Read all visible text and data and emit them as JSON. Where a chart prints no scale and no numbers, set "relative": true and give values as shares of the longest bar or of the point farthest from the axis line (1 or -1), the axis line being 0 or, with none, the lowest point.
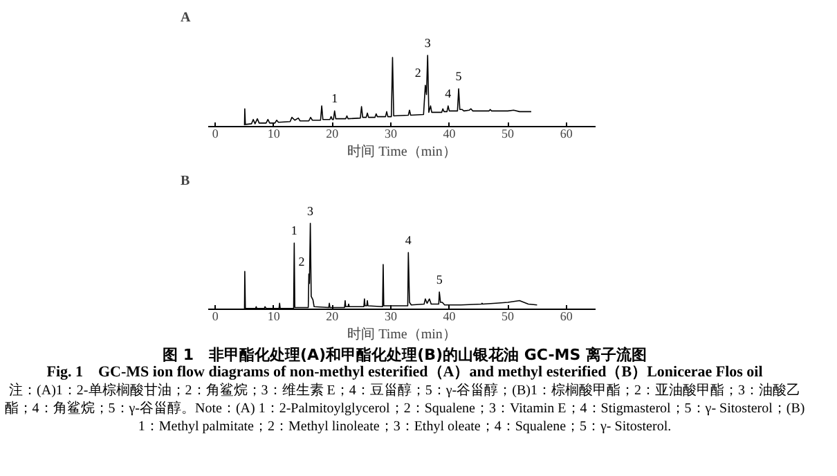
{
  "chart_data": [
    {
      "type": "line",
      "title": "A",
      "xlabel": "时间 Time（min）",
      "relative": true,
      "xlim": [
        -1.2,
        65
      ],
      "xticks": [
        0,
        10,
        20,
        30,
        40,
        50,
        60
      ],
      "grid": false,
      "marker": "none",
      "line_style": "solid",
      "series": [
        {
          "color": "#000000",
          "x": [
            5.0,
            5.05,
            5.15,
            6.2,
            6.5,
            6.8,
            7.2,
            7.5,
            8.7,
            9.0,
            9.3,
            10.2,
            10.5,
            10.8,
            12.8,
            13.1,
            13.6,
            14.2,
            14.5,
            16.0,
            16.3,
            16.6,
            18.0,
            18.2,
            18.4,
            19.6,
            19.8,
            20.0,
            20.2,
            20.4,
            20.6,
            22.3,
            22.5,
            22.7,
            24.8,
            25.0,
            25.2,
            25.8,
            26.0,
            26.2,
            27.3,
            27.5,
            27.7,
            29.1,
            29.3,
            29.5,
            30.1,
            30.3,
            30.5,
            33.0,
            33.2,
            33.4,
            35.6,
            35.9,
            36.1,
            36.3,
            36.5,
            36.8,
            37.0,
            38.7,
            38.9,
            39.1,
            39.6,
            39.8,
            40.0,
            41.4,
            41.6,
            41.8,
            42.2,
            42.5,
            43.4,
            43.7,
            44.0,
            46.8,
            47.0,
            47.2,
            48.5,
            50,
            51,
            52,
            54.0
          ],
          "values": [
            0.02,
            0.25,
            0.03,
            0.04,
            0.1,
            0.04,
            0.11,
            0.05,
            0.05,
            0.1,
            0.05,
            0.05,
            0.09,
            0.06,
            0.07,
            0.13,
            0.09,
            0.12,
            0.08,
            0.08,
            0.13,
            0.09,
            0.09,
            0.29,
            0.1,
            0.1,
            0.14,
            0.1,
            0.1,
            0.22,
            0.11,
            0.11,
            0.15,
            0.11,
            0.12,
            0.28,
            0.13,
            0.13,
            0.19,
            0.13,
            0.13,
            0.18,
            0.14,
            0.14,
            0.21,
            0.14,
            0.14,
            0.97,
            0.15,
            0.16,
            0.23,
            0.16,
            0.17,
            0.58,
            0.45,
            1.0,
            0.2,
            0.29,
            0.2,
            0.2,
            0.25,
            0.21,
            0.21,
            0.29,
            0.22,
            0.22,
            0.53,
            0.24,
            0.24,
            0.22,
            0.23,
            0.25,
            0.22,
            0.22,
            0.24,
            0.22,
            0.22,
            0.22,
            0.23,
            0.21,
            0.21
          ]
        }
      ],
      "annotations": [
        {
          "text": "1",
          "x": 20.4,
          "y": 0.22
        },
        {
          "text": "2",
          "x": 35.9,
          "y": 0.58
        },
        {
          "text": "3",
          "x": 36.3,
          "y": 1.0
        },
        {
          "text": "4",
          "x": 39.8,
          "y": 0.29
        },
        {
          "text": "5",
          "x": 41.6,
          "y": 0.53
        }
      ]
    },
    {
      "type": "line",
      "title": "B",
      "xlabel": "时间 Time（min）",
      "relative": true,
      "xlim": [
        -1.2,
        65
      ],
      "xticks": [
        0,
        10,
        20,
        30,
        40,
        50,
        60
      ],
      "grid": false,
      "marker": "none",
      "line_style": "solid",
      "series": [
        {
          "color": "#000000",
          "x": [
            5.0,
            5.05,
            5.15,
            6.9,
            7.0,
            7.1,
            8.4,
            8.5,
            8.7,
            10.9,
            11.0,
            11.1,
            13.4,
            13.5,
            13.6,
            15.9,
            16.0,
            16.1,
            16.25,
            16.4,
            16.7,
            16.9,
            19.4,
            19.5,
            19.6,
            22.1,
            22.2,
            22.3,
            22.7,
            22.8,
            22.9,
            25.4,
            25.5,
            25.6,
            25.9,
            26.0,
            26.1,
            28.6,
            28.7,
            28.8,
            30.5,
            32.9,
            33.0,
            33.2,
            33.5,
            35.7,
            35.9,
            36.2,
            36.6,
            36.9,
            38.2,
            38.3,
            38.5,
            38.8,
            39.2,
            42,
            45.5,
            45.6,
            45.7,
            48,
            50,
            52,
            53.5,
            55
          ],
          "values": [
            0.0,
            0.44,
            0.01,
            0.01,
            0.03,
            0.01,
            0.01,
            0.03,
            0.01,
            0.01,
            0.07,
            0.01,
            0.01,
            0.77,
            0.02,
            0.02,
            0.41,
            0.3,
            1.0,
            0.15,
            0.11,
            0.03,
            0.02,
            0.07,
            0.02,
            0.02,
            0.1,
            0.03,
            0.03,
            0.06,
            0.03,
            0.03,
            0.12,
            0.04,
            0.04,
            0.1,
            0.04,
            0.03,
            0.52,
            0.04,
            0.04,
            0.04,
            0.66,
            0.08,
            0.05,
            0.06,
            0.12,
            0.07,
            0.12,
            0.06,
            0.06,
            0.2,
            0.08,
            0.08,
            0.05,
            0.05,
            0.06,
            0.07,
            0.06,
            0.07,
            0.08,
            0.1,
            0.06,
            0.05
          ]
        }
      ],
      "annotations": [
        {
          "text": "1",
          "x": 13.5,
          "y": 0.77
        },
        {
          "text": "2",
          "x": 16.0,
          "y": 0.41
        },
        {
          "text": "3",
          "x": 16.25,
          "y": 1.0
        },
        {
          "text": "4",
          "x": 33.0,
          "y": 0.66
        },
        {
          "text": "5",
          "x": 38.3,
          "y": 0.2
        },
        "图 1　非甲酯化处理(A)和甲酯化处理(B)的山银花油 GC-MS 离子流图",
        "Fig. 1　GC-MS ion flow diagrams of non-methyl esterified（A）and methyl esterified（B）Lonicerae Flos oil",
        "注：(A)1：2-单棕榈酸甘油；2：角鲨烷；3：维生素 E；4：豆甾醇；5：γ-谷甾醇；(B)1：棕榈酸甲酯；2：亚油酸甲酯；3：油酸乙酯；4：角鲨烷；5：γ-谷甾醇。Note：(A) 1：2-Palmitoylglycerol；2：Squalene；3：Vitamin E；4：Stigmasterol；5：γ- Sitosterol；(B) 1：Methyl palmitate；2：Methyl linoleate；3：Ethyl oleate；4：Squalene；5：γ- Sitosterol."
      ]
    }
  ]
}
